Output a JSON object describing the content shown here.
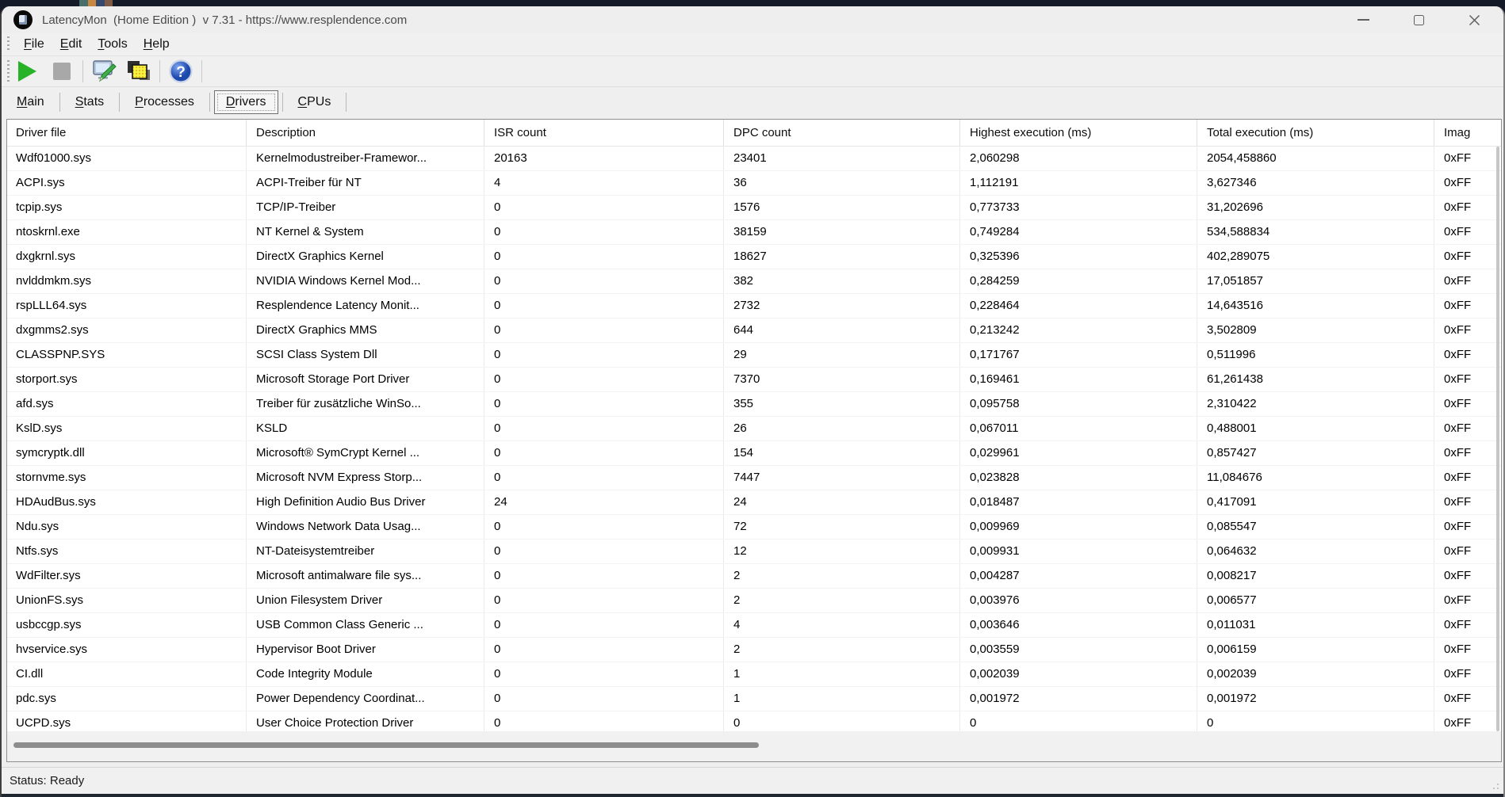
{
  "window": {
    "title": "LatencyMon  (Home Edition )  v 7.31 - https://www.resplendence.com",
    "controls": [
      "minimize",
      "maximize",
      "close"
    ]
  },
  "menu_bar": {
    "items": [
      "File",
      "Edit",
      "Tools",
      "Help"
    ]
  },
  "toolbar": {
    "buttons": [
      "start-monitor",
      "stop-monitor",
      "options",
      "copy-report",
      "help"
    ]
  },
  "tab_bar": {
    "items": [
      {
        "label": "Main",
        "selected": false
      },
      {
        "label": "Stats",
        "selected": false
      },
      {
        "label": "Processes",
        "selected": false
      },
      {
        "label": "Drivers",
        "selected": true
      },
      {
        "label": "CPUs",
        "selected": false
      }
    ]
  },
  "drivers_table": {
    "columns": [
      "Driver file",
      "Description",
      "ISR count",
      "DPC count",
      "Highest execution (ms)",
      "Total execution (ms)",
      "Imag"
    ],
    "rows": [
      [
        "Wdf01000.sys",
        "Kernelmodustreiber-Framewor...",
        "20163",
        "23401",
        "2,060298",
        "2054,458860",
        "0xFF"
      ],
      [
        "ACPI.sys",
        "ACPI-Treiber für NT",
        "4",
        "36",
        "1,112191",
        "3,627346",
        "0xFF"
      ],
      [
        "tcpip.sys",
        "TCP/IP-Treiber",
        "0",
        "1576",
        "0,773733",
        "31,202696",
        "0xFF"
      ],
      [
        "ntoskrnl.exe",
        "NT Kernel & System",
        "0",
        "38159",
        "0,749284",
        "534,588834",
        "0xFF"
      ],
      [
        "dxgkrnl.sys",
        "DirectX Graphics Kernel",
        "0",
        "18627",
        "0,325396",
        "402,289075",
        "0xFF"
      ],
      [
        "nvlddmkm.sys",
        "NVIDIA Windows Kernel Mod...",
        "0",
        "382",
        "0,284259",
        "17,051857",
        "0xFF"
      ],
      [
        "rspLLL64.sys",
        "Resplendence Latency Monit...",
        "0",
        "2732",
        "0,228464",
        "14,643516",
        "0xFF"
      ],
      [
        "dxgmms2.sys",
        "DirectX Graphics MMS",
        "0",
        "644",
        "0,213242",
        "3,502809",
        "0xFF"
      ],
      [
        "CLASSPNP.SYS",
        "SCSI Class System Dll",
        "0",
        "29",
        "0,171767",
        "0,511996",
        "0xFF"
      ],
      [
        "storport.sys",
        "Microsoft Storage Port Driver",
        "0",
        "7370",
        "0,169461",
        "61,261438",
        "0xFF"
      ],
      [
        "afd.sys",
        "Treiber für zusätzliche WinSo...",
        "0",
        "355",
        "0,095758",
        "2,310422",
        "0xFF"
      ],
      [
        "KslD.sys",
        "KSLD",
        "0",
        "26",
        "0,067011",
        "0,488001",
        "0xFF"
      ],
      [
        "symcryptk.dll",
        "Microsoft® SymCrypt Kernel ...",
        "0",
        "154",
        "0,029961",
        "0,857427",
        "0xFF"
      ],
      [
        "stornvme.sys",
        "Microsoft NVM Express Storp...",
        "0",
        "7447",
        "0,023828",
        "11,084676",
        "0xFF"
      ],
      [
        "HDAudBus.sys",
        "High Definition Audio Bus Driver",
        "24",
        "24",
        "0,018487",
        "0,417091",
        "0xFF"
      ],
      [
        "Ndu.sys",
        "Windows Network Data Usag...",
        "0",
        "72",
        "0,009969",
        "0,085547",
        "0xFF"
      ],
      [
        "Ntfs.sys",
        "NT-Dateisystemtreiber",
        "0",
        "12",
        "0,009931",
        "0,064632",
        "0xFF"
      ],
      [
        "WdFilter.sys",
        "Microsoft antimalware file sys...",
        "0",
        "2",
        "0,004287",
        "0,008217",
        "0xFF"
      ],
      [
        "UnionFS.sys",
        "Union Filesystem Driver",
        "0",
        "2",
        "0,003976",
        "0,006577",
        "0xFF"
      ],
      [
        "usbccgp.sys",
        "USB Common Class Generic ...",
        "0",
        "4",
        "0,003646",
        "0,011031",
        "0xFF"
      ],
      [
        "hvservice.sys",
        "Hypervisor Boot Driver",
        "0",
        "2",
        "0,003559",
        "0,006159",
        "0xFF"
      ],
      [
        "CI.dll",
        "Code Integrity Module",
        "0",
        "1",
        "0,002039",
        "0,002039",
        "0xFF"
      ],
      [
        "pdc.sys",
        "Power Dependency Coordinat...",
        "0",
        "1",
        "0,001972",
        "0,001972",
        "0xFF"
      ],
      [
        "UCPD.sys",
        "User Choice Protection Driver",
        "0",
        "0",
        "0",
        "0",
        "0xFF"
      ]
    ]
  },
  "status_bar": {
    "text": "Status: Ready"
  },
  "colors": {
    "chrome": "#efefef",
    "top_strip": "#141a28",
    "start_green": "#28b228",
    "stop_gray": "#a8a8a8",
    "help_blue": "#2f63c9"
  }
}
